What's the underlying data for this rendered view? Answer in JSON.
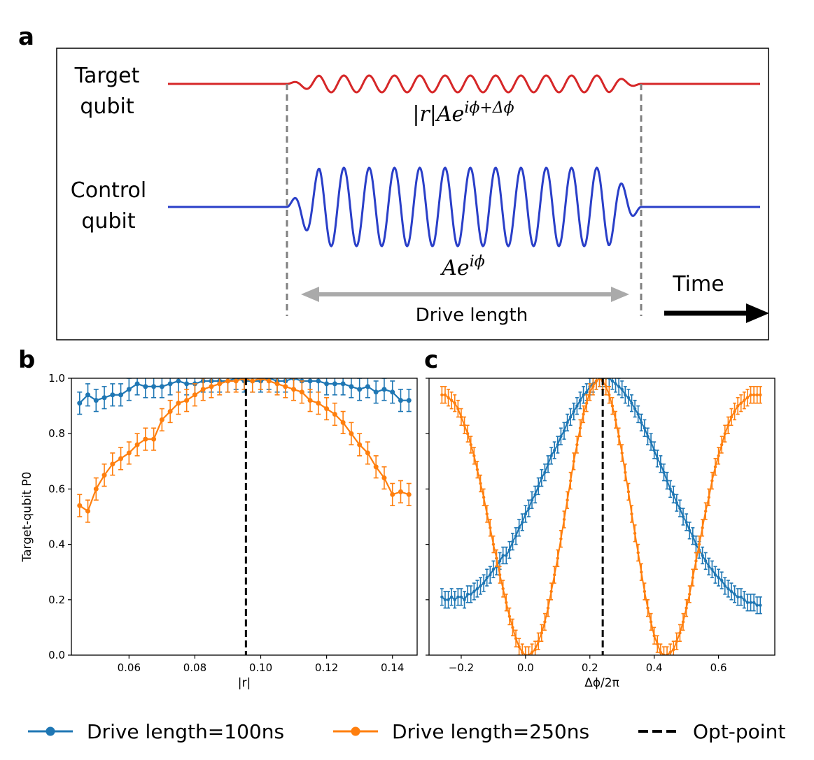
{
  "panel_a": {
    "letter": "a",
    "target_label_1": "Target",
    "target_label_2": "qubit",
    "control_label_1": "Control",
    "control_label_2": "qubit",
    "target_formula": "|r|Ae^{iϕ+Δϕ}",
    "control_formula": "Ae^{iϕ}",
    "drive_length_label": "Drive length",
    "time_label": "Time",
    "colors": {
      "target": "#d62728",
      "control": "#2a3fc8",
      "drive_arrow": "#aaaaaa",
      "dashed": "#808080"
    }
  },
  "legend": {
    "entries": [
      {
        "label": "Drive length=100ns",
        "color": "#1f77b4",
        "style": "line-marker"
      },
      {
        "label": "Drive length=250ns",
        "color": "#ff7f0e",
        "style": "line-marker"
      },
      {
        "label": "Opt-point",
        "color": "#000000",
        "style": "dashed"
      }
    ]
  },
  "chart_data": [
    {
      "panel": "b",
      "type": "line",
      "xlabel": "|r|",
      "ylabel": "Target-qubit P0",
      "xlim": [
        0.0425,
        0.1475
      ],
      "ylim": [
        0.0,
        1.0
      ],
      "xticks": [
        0.06,
        0.08,
        0.1,
        0.12,
        0.14
      ],
      "xtick_labels": [
        "0.06",
        "0.08",
        "0.10",
        "0.12",
        "0.14"
      ],
      "yticks": [
        0.0,
        0.2,
        0.4,
        0.6,
        0.8,
        1.0
      ],
      "ytick_labels": [
        "0.0",
        "0.2",
        "0.4",
        "0.6",
        "0.8",
        "1.0"
      ],
      "opt_point_x": 0.0955,
      "x": [
        0.045,
        0.0475,
        0.05,
        0.0525,
        0.055,
        0.0575,
        0.06,
        0.0625,
        0.065,
        0.0675,
        0.07,
        0.0725,
        0.075,
        0.0775,
        0.08,
        0.0825,
        0.085,
        0.0875,
        0.09,
        0.0925,
        0.095,
        0.0975,
        0.1,
        0.1025,
        0.105,
        0.1075,
        0.11,
        0.1125,
        0.115,
        0.1175,
        0.12,
        0.1225,
        0.125,
        0.1275,
        0.13,
        0.1325,
        0.135,
        0.1375,
        0.14,
        0.1425,
        0.145
      ],
      "series": [
        {
          "name": "Drive length=100ns",
          "color": "#1f77b4",
          "err": 0.04,
          "values": [
            0.91,
            0.94,
            0.92,
            0.93,
            0.94,
            0.94,
            0.96,
            0.98,
            0.97,
            0.97,
            0.97,
            0.98,
            0.99,
            0.98,
            0.98,
            0.99,
            0.99,
            0.99,
            0.99,
            1.0,
            0.99,
            0.99,
            0.99,
            1.0,
            0.99,
            0.99,
            1.0,
            0.99,
            0.99,
            0.99,
            0.98,
            0.98,
            0.98,
            0.97,
            0.96,
            0.97,
            0.95,
            0.96,
            0.95,
            0.92,
            0.92
          ]
        },
        {
          "name": "Drive length=250ns",
          "color": "#ff7f0e",
          "err": 0.04,
          "values": [
            0.54,
            0.52,
            0.6,
            0.65,
            0.69,
            0.71,
            0.73,
            0.76,
            0.78,
            0.78,
            0.85,
            0.88,
            0.91,
            0.92,
            0.94,
            0.96,
            0.97,
            0.98,
            0.99,
            0.99,
            1.0,
            0.99,
            1.0,
            0.99,
            0.98,
            0.97,
            0.96,
            0.95,
            0.92,
            0.91,
            0.89,
            0.87,
            0.84,
            0.8,
            0.76,
            0.73,
            0.68,
            0.64,
            0.58,
            0.59,
            0.58
          ]
        }
      ]
    },
    {
      "panel": "c",
      "type": "line",
      "xlabel": "Δϕ/2π",
      "ylabel": "",
      "xlim": [
        -0.3,
        0.775
      ],
      "ylim": [
        0.0,
        1.0
      ],
      "xticks": [
        -0.2,
        0.0,
        0.2,
        0.4,
        0.6
      ],
      "xtick_labels": [
        "−0.2",
        "0.0",
        "0.2",
        "0.4",
        "0.6"
      ],
      "opt_point_x": 0.24,
      "x_start": -0.26,
      "x_end": 0.73,
      "n_points": 100,
      "series": [
        {
          "name": "Drive length=100ns",
          "color": "#1f77b4",
          "err": 0.03,
          "values": [
            0.21,
            0.2,
            0.2,
            0.21,
            0.2,
            0.21,
            0.21,
            0.2,
            0.22,
            0.22,
            0.23,
            0.24,
            0.25,
            0.26,
            0.28,
            0.29,
            0.31,
            0.32,
            0.34,
            0.36,
            0.36,
            0.38,
            0.41,
            0.43,
            0.46,
            0.48,
            0.51,
            0.53,
            0.56,
            0.58,
            0.61,
            0.64,
            0.66,
            0.69,
            0.72,
            0.74,
            0.76,
            0.79,
            0.81,
            0.84,
            0.86,
            0.88,
            0.9,
            0.92,
            0.94,
            0.95,
            0.97,
            0.98,
            0.99,
            1.0,
            1.0,
            1.0,
            1.0,
            0.99,
            0.98,
            0.97,
            0.96,
            0.94,
            0.93,
            0.91,
            0.89,
            0.87,
            0.84,
            0.82,
            0.79,
            0.77,
            0.74,
            0.71,
            0.69,
            0.66,
            0.63,
            0.6,
            0.58,
            0.55,
            0.53,
            0.5,
            0.48,
            0.45,
            0.43,
            0.4,
            0.38,
            0.36,
            0.34,
            0.32,
            0.31,
            0.29,
            0.28,
            0.27,
            0.25,
            0.24,
            0.23,
            0.22,
            0.21,
            0.21,
            0.2,
            0.19,
            0.19,
            0.19,
            0.18,
            0.18
          ]
        },
        {
          "name": "Drive length=250ns",
          "color": "#ff7f0e",
          "err": 0.03,
          "values": [
            0.94,
            0.94,
            0.93,
            0.92,
            0.91,
            0.89,
            0.86,
            0.83,
            0.8,
            0.76,
            0.72,
            0.67,
            0.62,
            0.57,
            0.51,
            0.46,
            0.4,
            0.35,
            0.29,
            0.24,
            0.19,
            0.14,
            0.1,
            0.06,
            0.03,
            0.01,
            0.0,
            0.0,
            0.01,
            0.02,
            0.05,
            0.08,
            0.12,
            0.17,
            0.23,
            0.29,
            0.35,
            0.42,
            0.49,
            0.56,
            0.63,
            0.7,
            0.76,
            0.82,
            0.87,
            0.91,
            0.95,
            0.97,
            0.99,
            1.0,
            0.99,
            0.97,
            0.94,
            0.9,
            0.85,
            0.79,
            0.73,
            0.66,
            0.59,
            0.51,
            0.44,
            0.37,
            0.3,
            0.23,
            0.17,
            0.12,
            0.07,
            0.04,
            0.01,
            0.0,
            0.0,
            0.01,
            0.02,
            0.05,
            0.08,
            0.12,
            0.17,
            0.22,
            0.28,
            0.34,
            0.4,
            0.46,
            0.52,
            0.57,
            0.63,
            0.68,
            0.72,
            0.76,
            0.8,
            0.83,
            0.86,
            0.88,
            0.9,
            0.91,
            0.92,
            0.93,
            0.94,
            0.94,
            0.94,
            0.94
          ]
        }
      ]
    }
  ]
}
